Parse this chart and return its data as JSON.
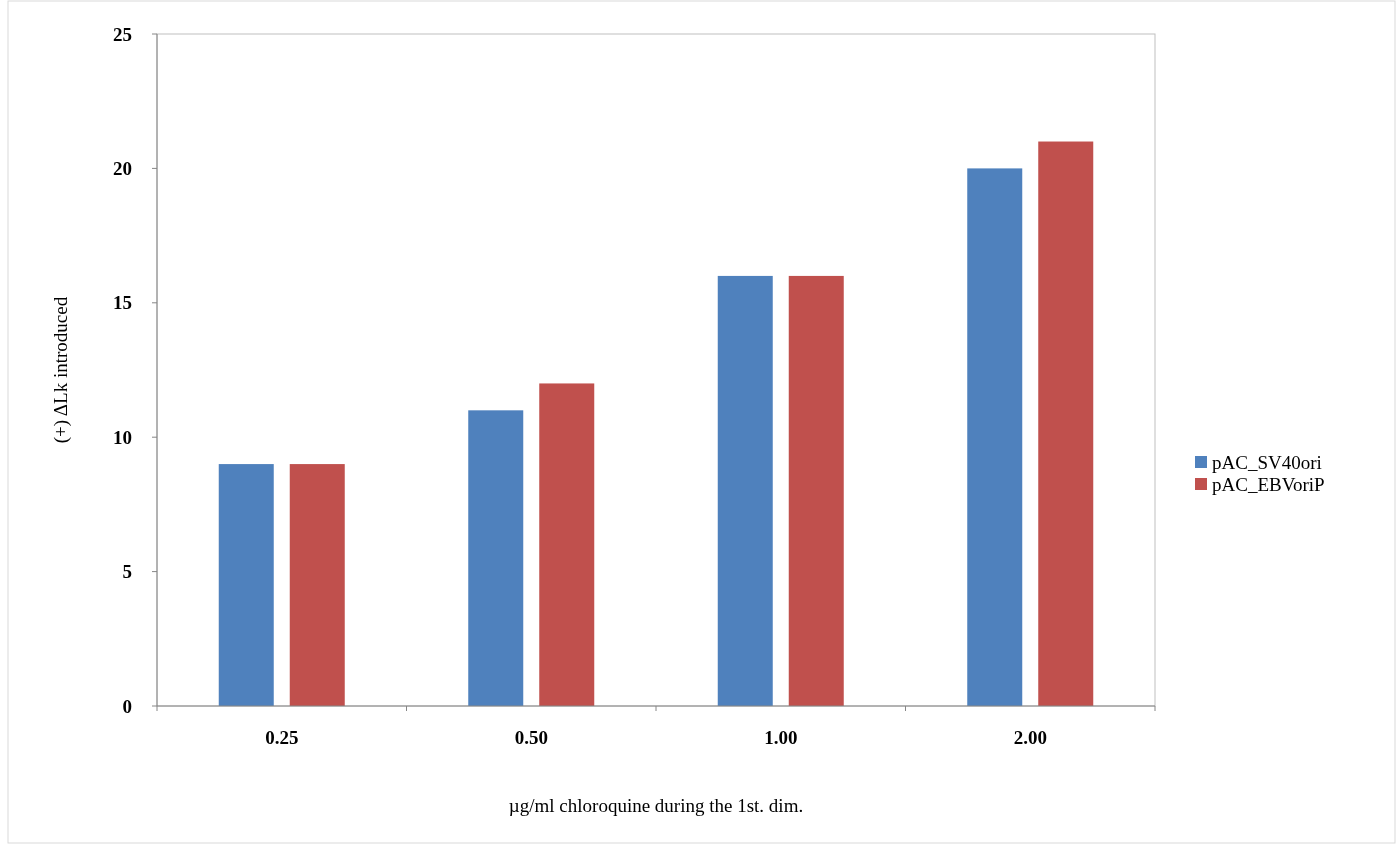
{
  "chart_data": {
    "type": "bar",
    "xlabel": "µg/ml chloroquine during the 1st. dim.",
    "ylabel": "(+) ΔLk introduced",
    "categories": [
      "0.25",
      "0.50",
      "1.00",
      "2.00"
    ],
    "series": [
      {
        "name": "pAC_SV40ori",
        "color": "#4f81bd",
        "values": [
          9,
          11,
          16,
          20
        ]
      },
      {
        "name": "pAC_EBVoriP",
        "color": "#c0504d",
        "values": [
          9,
          12,
          16,
          21
        ]
      }
    ],
    "ylim": [
      0,
      25
    ],
    "yticks": [
      0,
      5,
      10,
      15,
      20,
      25
    ],
    "grid": false,
    "legend": "right"
  }
}
